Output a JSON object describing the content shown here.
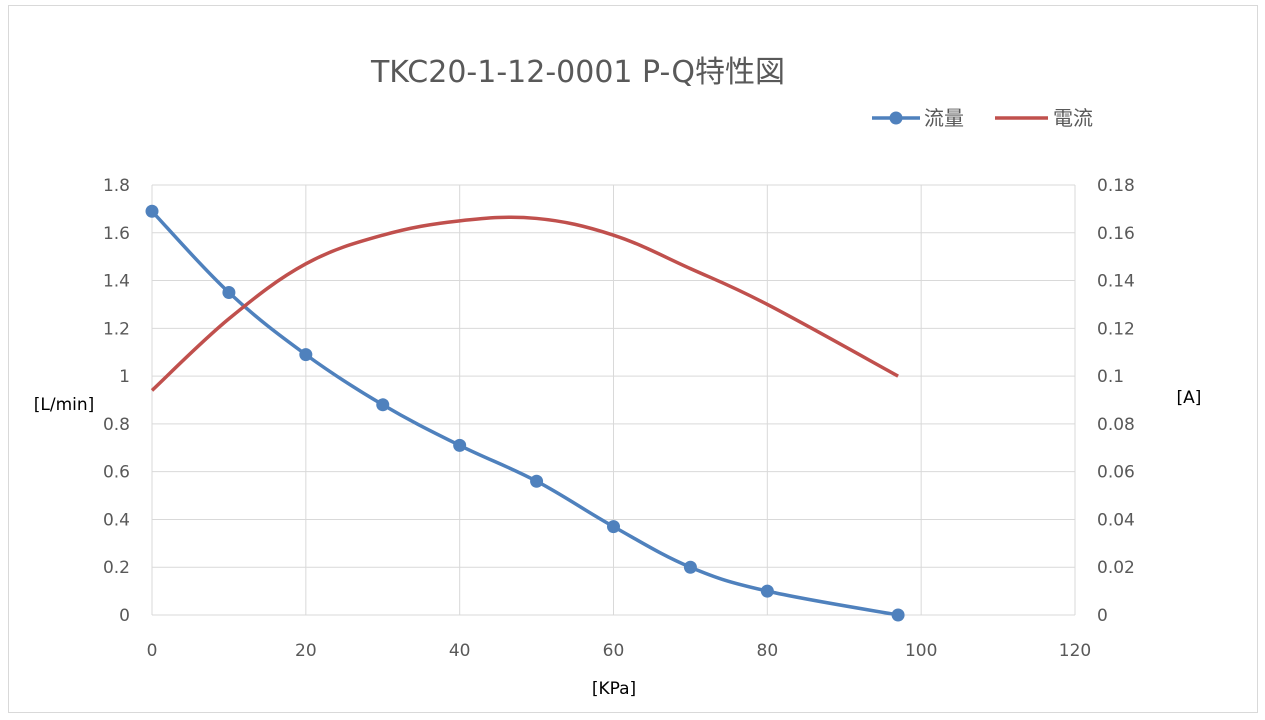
{
  "chart_data": {
    "type": "line",
    "title": "TKC20-1-12-0001 P-Q特性図",
    "xlabel": "[KPa]",
    "ylabel": "[L/min]",
    "y2label": "[A]",
    "xlim": [
      0,
      120
    ],
    "ylim": [
      0,
      1.8
    ],
    "y2lim": [
      0,
      0.18
    ],
    "x_ticks": [
      "0",
      "20",
      "40",
      "60",
      "80",
      "100",
      "120"
    ],
    "y_ticks": [
      "0",
      "0.2",
      "0.4",
      "0.6",
      "0.8",
      "1",
      "1.2",
      "1.4",
      "1.6",
      "1.8"
    ],
    "y2_ticks": [
      "0",
      "0.02",
      "0.04",
      "0.06",
      "0.08",
      "0.1",
      "0.12",
      "0.14",
      "0.16",
      "0.18"
    ],
    "grid": true,
    "legend_position": "top-right",
    "series": [
      {
        "name": "流量",
        "axis": "left",
        "color": "#4f81bd",
        "markers": true,
        "x": [
          0,
          10,
          20,
          30,
          40,
          50,
          60,
          70,
          80,
          97
        ],
        "values": [
          1.69,
          1.35,
          1.09,
          0.88,
          0.71,
          0.56,
          0.37,
          0.2,
          0.1,
          0
        ]
      },
      {
        "name": "電流",
        "axis": "right",
        "color": "#c0504d",
        "markers": false,
        "x": [
          0,
          10,
          20,
          30,
          40,
          50,
          60,
          70,
          80,
          97
        ],
        "values": [
          0.094,
          0.124,
          0.147,
          0.159,
          0.165,
          0.166,
          0.159,
          0.145,
          0.13,
          0.1
        ]
      }
    ]
  }
}
